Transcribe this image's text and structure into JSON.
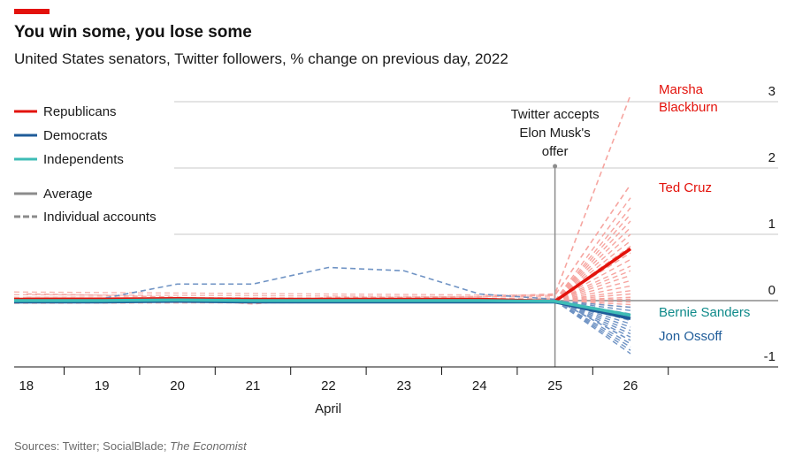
{
  "header": {
    "title": "You win some, you lose some",
    "subtitle": "United States senators, Twitter followers, % change on previous day, 2022"
  },
  "footer": {
    "source_prefix": "Sources: Twitter; SocialBlade; ",
    "source_publication": "The Economist"
  },
  "legend": {
    "republicans": "Republicans",
    "democrats": "Democrats",
    "independents": "Independents",
    "average": "Average",
    "individual": "Individual accounts"
  },
  "annotations": {
    "event_line1": "Twitter accepts",
    "event_line2": "Elon Musk's",
    "event_line3": "offer",
    "blackburn_line1": "Marsha",
    "blackburn_line2": "Blackburn",
    "cruz": "Ted Cruz",
    "sanders": "Bernie Sanders",
    "ossoff": "Jon Ossoff"
  },
  "colors": {
    "republicans": "#e3120b",
    "republicans_light": "#f6a5a0",
    "democrats": "#1f5c99",
    "democrats_light": "#6f93c4",
    "independents": "#3ebcb6",
    "independents_text": "#0f8a8a",
    "average_legend": "#8c8c8c",
    "grid": "#c8c8c8",
    "axis": "#121212"
  },
  "chart_data": {
    "type": "line",
    "x": [
      18,
      19,
      20,
      21,
      22,
      23,
      24,
      25,
      26
    ],
    "x_tick_labels": [
      "18",
      "19",
      "20",
      "21",
      "22",
      "23",
      "24",
      "25",
      "26"
    ],
    "xlabel": "April",
    "ylim": [
      -1,
      3
    ],
    "y_ticks": [
      -1,
      0,
      1,
      2,
      3
    ],
    "y_tick_labels": [
      "-1",
      "0",
      "1",
      "2",
      "3"
    ],
    "grid": true,
    "legend_position": "top-left",
    "event": {
      "x": 25,
      "label": "Twitter accepts Elon Musk's offer"
    },
    "series": [
      {
        "name": "Republicans",
        "kind": "average",
        "values": [
          0.02,
          0.02,
          0.03,
          0.02,
          0.02,
          0.02,
          0.02,
          -0.01,
          0.78
        ]
      },
      {
        "name": "Democrats",
        "kind": "average",
        "values": [
          -0.02,
          -0.02,
          -0.01,
          -0.02,
          -0.02,
          -0.02,
          -0.02,
          -0.02,
          -0.27
        ]
      },
      {
        "name": "Independents",
        "kind": "average",
        "values": [
          0.0,
          0.0,
          0.01,
          0.0,
          0.0,
          0.0,
          0.0,
          -0.01,
          -0.22
        ]
      },
      {
        "name": "Marsha Blackburn",
        "kind": "individual",
        "party": "Republicans",
        "values": [
          0.1,
          0.08,
          0.05,
          -0.02,
          0.03,
          0.05,
          0.06,
          0.1,
          3.1
        ]
      },
      {
        "name": "Ted Cruz",
        "kind": "individual",
        "party": "Republicans",
        "values": [
          0.05,
          0.05,
          0.03,
          -0.05,
          0.05,
          0.05,
          0.06,
          0.08,
          1.75
        ]
      },
      {
        "name": "Bernie Sanders",
        "kind": "individual",
        "party": "Independents",
        "values": [
          0.0,
          0.0,
          0.01,
          0.0,
          0.0,
          0.0,
          0.0,
          -0.01,
          -0.22
        ]
      },
      {
        "name": "Jon Ossoff",
        "kind": "individual",
        "party": "Democrats",
        "values": [
          -0.02,
          0.03,
          0.25,
          0.25,
          0.5,
          0.45,
          0.1,
          0.02,
          -0.6
        ]
      }
    ],
    "individual_final": {
      "republicans": [
        1.55,
        1.4,
        1.3,
        1.2,
        1.1,
        1.0,
        0.9,
        0.82,
        0.72,
        0.62,
        0.52,
        0.45,
        0.38,
        0.3,
        0.22,
        0.15,
        0.1,
        0.05,
        0.02,
        -0.02,
        -0.06,
        -0.1
      ],
      "democrats": [
        -0.1,
        -0.15,
        -0.2,
        -0.25,
        -0.3,
        -0.35,
        -0.4,
        -0.45,
        -0.5,
        -0.55,
        -0.65,
        -0.7,
        -0.75,
        -0.8
      ]
    }
  }
}
